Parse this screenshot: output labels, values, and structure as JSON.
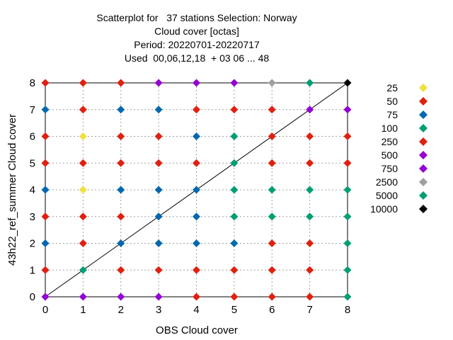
{
  "title_lines": [
    "Scatterplot for   37 stations Selection: Norway",
    "Cloud cover [octas]",
    "Period: 20220701-20220717",
    "Used  00,06,12,18  + 03 06 ... 48"
  ],
  "legend": {
    "entries": [
      {
        "label": "25",
        "color": "#f0e040"
      },
      {
        "label": "50",
        "color": "#e02010"
      },
      {
        "label": "75",
        "color": "#0068b0"
      },
      {
        "label": "100",
        "color": "#009e73"
      },
      {
        "label": "250",
        "color": "#e02010"
      },
      {
        "label": "500",
        "color": "#9400d3"
      },
      {
        "label": "750",
        "color": "#9400d3"
      },
      {
        "label": "2500",
        "color": "#a0a0a0"
      },
      {
        "label": "5000",
        "color": "#009e73"
      },
      {
        "label": "10000",
        "color": "#000000"
      }
    ]
  },
  "chart_data": {
    "type": "scatter",
    "title": "Scatterplot for   37 stations Selection: Norway / Cloud cover [octas] / Period: 20220701-20220717 / Used  00,06,12,18  + 03 06 ... 48",
    "xlabel": "OBS Cloud cover",
    "ylabel": "43h22_ref_summer Cloud cover",
    "xlim": [
      0,
      8
    ],
    "ylim": [
      0,
      8
    ],
    "xticks": [
      0,
      1,
      2,
      3,
      4,
      5,
      6,
      7,
      8
    ],
    "yticks": [
      0,
      1,
      2,
      3,
      4,
      5,
      6,
      7,
      8
    ],
    "grid": true,
    "legend_position": "right",
    "diagonal": true,
    "count_classes": [
      "25",
      "50",
      "75",
      "100",
      "250",
      "500",
      "750",
      "2500",
      "5000",
      "10000"
    ],
    "points": [
      {
        "x": 0,
        "y": 8,
        "class": "50"
      },
      {
        "x": 1,
        "y": 8,
        "class": "50"
      },
      {
        "x": 2,
        "y": 8,
        "class": "50"
      },
      {
        "x": 3,
        "y": 8,
        "class": "500"
      },
      {
        "x": 4,
        "y": 8,
        "class": "500"
      },
      {
        "x": 5,
        "y": 8,
        "class": "500"
      },
      {
        "x": 6,
        "y": 8,
        "class": "2500"
      },
      {
        "x": 7,
        "y": 8,
        "class": "5000"
      },
      {
        "x": 8,
        "y": 8,
        "class": "10000"
      },
      {
        "x": 0,
        "y": 7,
        "class": "75"
      },
      {
        "x": 1,
        "y": 7,
        "class": "50"
      },
      {
        "x": 2,
        "y": 7,
        "class": "75"
      },
      {
        "x": 3,
        "y": 7,
        "class": "75"
      },
      {
        "x": 4,
        "y": 7,
        "class": "50"
      },
      {
        "x": 5,
        "y": 7,
        "class": "50"
      },
      {
        "x": 6,
        "y": 7,
        "class": "250"
      },
      {
        "x": 7,
        "y": 7,
        "class": "500"
      },
      {
        "x": 8,
        "y": 7,
        "class": "500"
      },
      {
        "x": 0,
        "y": 6,
        "class": "50"
      },
      {
        "x": 1,
        "y": 6,
        "class": "25"
      },
      {
        "x": 2,
        "y": 6,
        "class": "50"
      },
      {
        "x": 3,
        "y": 6,
        "class": "50"
      },
      {
        "x": 4,
        "y": 6,
        "class": "75"
      },
      {
        "x": 5,
        "y": 6,
        "class": "100"
      },
      {
        "x": 6,
        "y": 6,
        "class": "250"
      },
      {
        "x": 7,
        "y": 6,
        "class": "250"
      },
      {
        "x": 8,
        "y": 6,
        "class": "250"
      },
      {
        "x": 0,
        "y": 5,
        "class": "50"
      },
      {
        "x": 1,
        "y": 5,
        "class": "50"
      },
      {
        "x": 2,
        "y": 5,
        "class": "50"
      },
      {
        "x": 3,
        "y": 5,
        "class": "50"
      },
      {
        "x": 4,
        "y": 5,
        "class": "50"
      },
      {
        "x": 5,
        "y": 5,
        "class": "100"
      },
      {
        "x": 6,
        "y": 5,
        "class": "250"
      },
      {
        "x": 7,
        "y": 5,
        "class": "250"
      },
      {
        "x": 8,
        "y": 5,
        "class": "250"
      },
      {
        "x": 0,
        "y": 4,
        "class": "75"
      },
      {
        "x": 1,
        "y": 4,
        "class": "25"
      },
      {
        "x": 2,
        "y": 4,
        "class": "75"
      },
      {
        "x": 3,
        "y": 4,
        "class": "75"
      },
      {
        "x": 4,
        "y": 4,
        "class": "75"
      },
      {
        "x": 5,
        "y": 4,
        "class": "100"
      },
      {
        "x": 6,
        "y": 4,
        "class": "100"
      },
      {
        "x": 7,
        "y": 4,
        "class": "100"
      },
      {
        "x": 8,
        "y": 4,
        "class": "100"
      },
      {
        "x": 0,
        "y": 3,
        "class": "50"
      },
      {
        "x": 1,
        "y": 3,
        "class": "50"
      },
      {
        "x": 2,
        "y": 3,
        "class": "50"
      },
      {
        "x": 3,
        "y": 3,
        "class": "75"
      },
      {
        "x": 4,
        "y": 3,
        "class": "75"
      },
      {
        "x": 5,
        "y": 3,
        "class": "100"
      },
      {
        "x": 6,
        "y": 3,
        "class": "100"
      },
      {
        "x": 7,
        "y": 3,
        "class": "100"
      },
      {
        "x": 8,
        "y": 3,
        "class": "100"
      },
      {
        "x": 0,
        "y": 2,
        "class": "75"
      },
      {
        "x": 1,
        "y": 2,
        "class": "50"
      },
      {
        "x": 2,
        "y": 2,
        "class": "75"
      },
      {
        "x": 3,
        "y": 2,
        "class": "75"
      },
      {
        "x": 4,
        "y": 2,
        "class": "75"
      },
      {
        "x": 5,
        "y": 2,
        "class": "75"
      },
      {
        "x": 6,
        "y": 2,
        "class": "250"
      },
      {
        "x": 7,
        "y": 2,
        "class": "250"
      },
      {
        "x": 8,
        "y": 2,
        "class": "100"
      },
      {
        "x": 0,
        "y": 1,
        "class": "50"
      },
      {
        "x": 1,
        "y": 1,
        "class": "100"
      },
      {
        "x": 2,
        "y": 1,
        "class": "50"
      },
      {
        "x": 3,
        "y": 1,
        "class": "50"
      },
      {
        "x": 4,
        "y": 1,
        "class": "50"
      },
      {
        "x": 5,
        "y": 1,
        "class": "50"
      },
      {
        "x": 6,
        "y": 1,
        "class": "250"
      },
      {
        "x": 7,
        "y": 1,
        "class": "250"
      },
      {
        "x": 8,
        "y": 1,
        "class": "100"
      },
      {
        "x": 0,
        "y": 0,
        "class": "500"
      },
      {
        "x": 1,
        "y": 0,
        "class": "500"
      },
      {
        "x": 2,
        "y": 0,
        "class": "500"
      },
      {
        "x": 3,
        "y": 0,
        "class": "500"
      },
      {
        "x": 4,
        "y": 0,
        "class": "250"
      },
      {
        "x": 5,
        "y": 0,
        "class": "250"
      },
      {
        "x": 6,
        "y": 0,
        "class": "250"
      },
      {
        "x": 7,
        "y": 0,
        "class": "250"
      },
      {
        "x": 8,
        "y": 0,
        "class": "100"
      }
    ]
  }
}
